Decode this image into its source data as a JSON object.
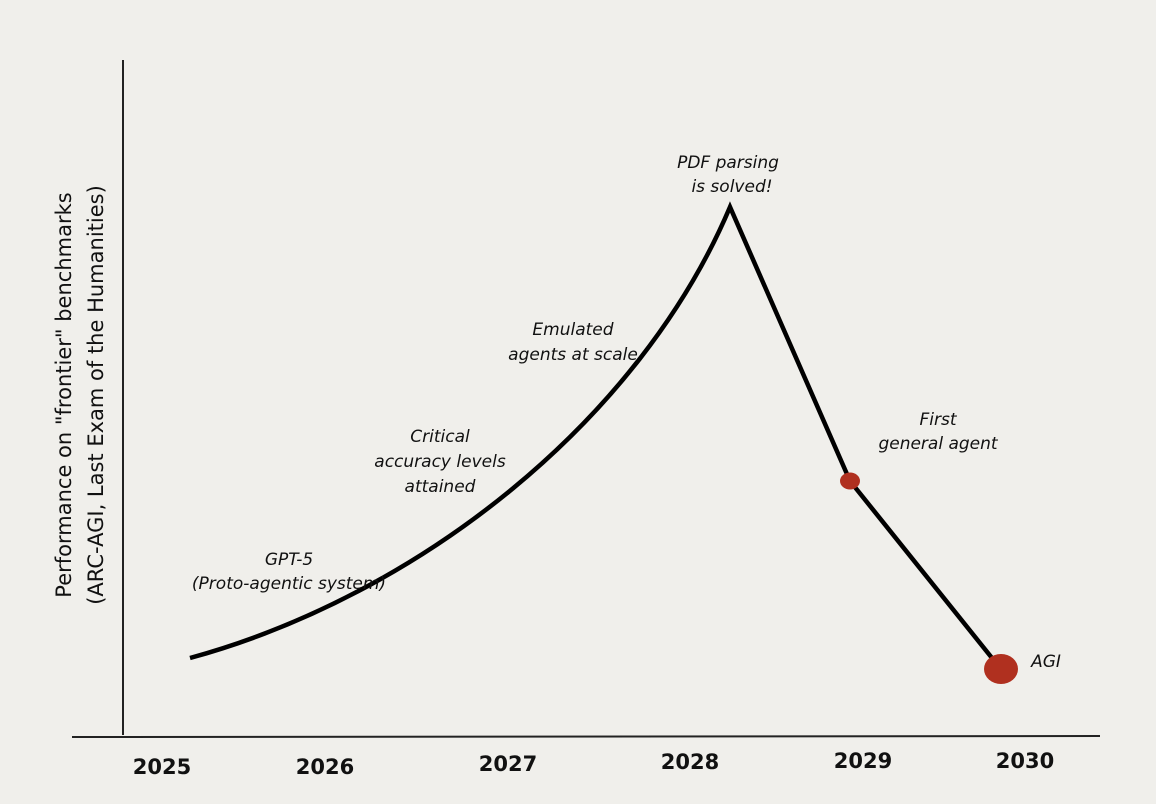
{
  "y_axis_label": [
    "Performance on \"frontier\" benchmarks",
    "(ARC-AGI, Last Exam of the Humanities)"
  ],
  "x_axis_labels": [
    "2025",
    "2026",
    "2027",
    "2028",
    "2029",
    "2030"
  ],
  "annotations": [
    {
      "lines": [
        "GPT-5",
        "(Proto-agentic system)"
      ]
    },
    {
      "lines": [
        "Critical",
        "accuracy levels",
        "attained"
      ]
    },
    {
      "lines": [
        "Emulated",
        "agents at scale"
      ]
    },
    {
      "lines": [
        "PDF parsing",
        "is solved!"
      ]
    },
    {
      "lines": [
        "First",
        "general agent"
      ]
    },
    {
      "lines": [
        "AGI"
      ]
    }
  ]
}
